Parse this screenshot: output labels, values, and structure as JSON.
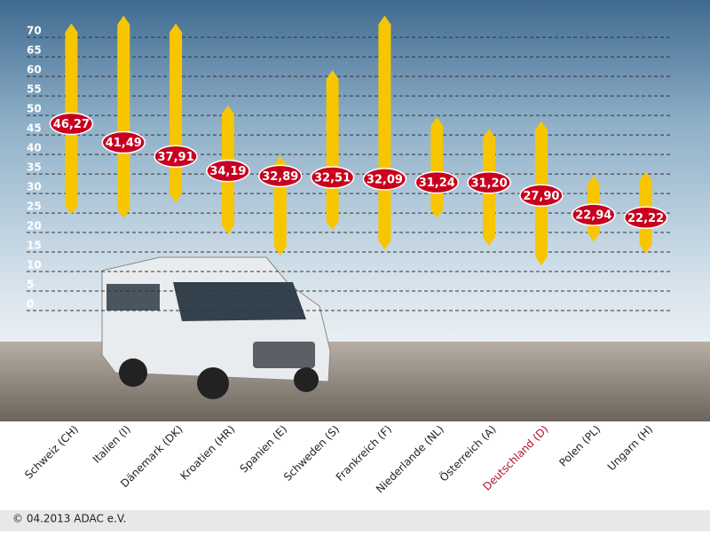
{
  "chart_data": {
    "type": "range",
    "categories": [
      "Schweiz (CH)",
      "Italien (I)",
      "Dänemark (DK)",
      "Kroatien (HR)",
      "Spanien (E)",
      "Schweden (S)",
      "Frankreich (F)",
      "Niederlande (NL)",
      "Österreich (A)",
      "Deutschland (D)",
      "Polen (PL)",
      "Ungarn (H)"
    ],
    "label_colors": [
      "#222222",
      "#222222",
      "#222222",
      "#222222",
      "#222222",
      "#222222",
      "#222222",
      "#222222",
      "#222222",
      "#b0102a",
      "#222222",
      "#222222"
    ],
    "min": [
      23,
      22,
      26,
      18,
      12.5,
      19,
      14,
      22,
      15,
      10,
      16,
      13
    ],
    "max": [
      72,
      74,
      72,
      51,
      38,
      60,
      74,
      48,
      45,
      47,
      33,
      34
    ],
    "values": [
      46.27,
      41.49,
      37.91,
      34.19,
      32.89,
      32.51,
      32.09,
      31.24,
      31.2,
      27.9,
      22.94,
      22.22
    ],
    "value_labels": [
      "46,27",
      "41,49",
      "37,91",
      "34,19",
      "32,89",
      "32,51",
      "32,09",
      "31,24",
      "31,20",
      "27,90",
      "22,94",
      "22,22"
    ],
    "color": "#f7c600",
    "label_fill": "#c8001e",
    "ylim": [
      0,
      78
    ],
    "yticks": [
      0,
      5,
      10,
      15,
      20,
      25,
      30,
      35,
      40,
      45,
      50,
      55,
      60,
      65,
      70
    ],
    "grid": true,
    "footer": "© 04.2013  ADAC e.V."
  }
}
